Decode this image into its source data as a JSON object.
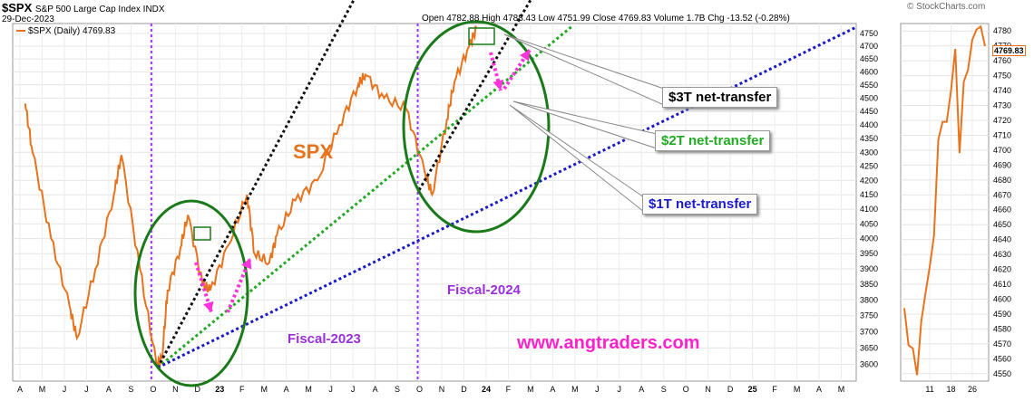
{
  "header": {
    "symbol": "$SPX",
    "name": "S&P 500 Large Cap Index INDX",
    "date": "29-Dec-2023",
    "watermark": "© StockCharts.com",
    "ohlc_text": "Open 4782.88  High 4788.43  Low 4751.99  Close 4769.83  Volume 1.7B  Chg -13.52 (-0.28%)",
    "legend": "$SPX (Daily) 4769.83",
    "last_price": "4769.83"
  },
  "annotations": {
    "spx_label": "SPX",
    "fiscal_2023": "Fiscal-2023",
    "fiscal_2024": "Fiscal-2024",
    "website": "www.angtraders.com",
    "callout_3t": "$3T net-transfer",
    "callout_2t": "$2T net-transfer",
    "callout_1t": "$1T net-transfer"
  },
  "colors": {
    "price": "#e8731c",
    "trend_3t": "#111111",
    "trend_2t": "#22aa22",
    "trend_1t": "#1a1acc",
    "ellipse": "#1a7a1a",
    "fiscal_line": "#9b30ff",
    "arrow": "#ff33dd",
    "fiscal_text": "#9b30d9",
    "website": "#ff22cc"
  },
  "chart_data": [
    {
      "type": "line",
      "series_name": "$SPX (Daily)",
      "y_scale": "log",
      "ylim": [
        3550,
        4790
      ],
      "y_ticks": [
        3600,
        3650,
        3700,
        3750,
        3800,
        3850,
        3900,
        3950,
        4000,
        4050,
        4100,
        4150,
        4200,
        4250,
        4300,
        4350,
        4400,
        4450,
        4500,
        4550,
        4600,
        4650,
        4700,
        4750
      ],
      "x_tick_labels": [
        "A",
        "M",
        "J",
        "J",
        "A",
        "S",
        "O",
        "N",
        "D",
        "23",
        "F",
        "M",
        "A",
        "M",
        "J",
        "J",
        "A",
        "S",
        "O",
        "N",
        "D",
        "24",
        "F",
        "M",
        "A",
        "M",
        "J",
        "J",
        "A",
        "S",
        "O",
        "N",
        "D",
        "25",
        "F",
        "M",
        "A",
        "M"
      ],
      "x": [
        "2022-04",
        "2022-04",
        "2022-05",
        "2022-06",
        "2022-06",
        "2022-07",
        "2022-08",
        "2022-08",
        "2022-09",
        "2022-10",
        "2022-10",
        "2022-10",
        "2022-11",
        "2022-11",
        "2022-12",
        "2022-12",
        "2023-01",
        "2023-02",
        "2023-02",
        "2023-03",
        "2023-03",
        "2023-04",
        "2023-05",
        "2023-06",
        "2023-07",
        "2023-07",
        "2023-08",
        "2023-09",
        "2023-10",
        "2023-10",
        "2023-11",
        "2023-11",
        "2023-12",
        "2023-12"
      ],
      "y": [
        4480,
        4300,
        4000,
        3780,
        3680,
        3900,
        4150,
        4290,
        3900,
        3600,
        3620,
        3830,
        3970,
        4080,
        3850,
        3830,
        3980,
        4150,
        3950,
        3920,
        4010,
        4130,
        4200,
        4400,
        4550,
        4589,
        4500,
        4460,
        4230,
        4150,
        4420,
        4560,
        4700,
        4769.83
      ],
      "grid": true,
      "fiscal_boundaries": [
        "2022-10",
        "2023-10"
      ],
      "trendlines": [
        "$1T net-transfer",
        "$2T net-transfer",
        "$3T net-transfer"
      ]
    },
    {
      "type": "line",
      "series_name": "$SPX (Daily) inset",
      "ylim": [
        4545,
        4785
      ],
      "y_ticks": [
        4550,
        4560,
        4570,
        4580,
        4590,
        4600,
        4610,
        4620,
        4630,
        4640,
        4650,
        4660,
        4670,
        4680,
        4690,
        4700,
        4710,
        4720,
        4730,
        4740,
        4750,
        4760,
        4770,
        4780
      ],
      "x_tick_labels": [
        "11",
        "18",
        "26"
      ],
      "x": [
        "Dec 1",
        "Dec 4",
        "Dec 5",
        "Dec 6",
        "Dec 7",
        "Dec 8",
        "Dec 11",
        "Dec 12",
        "Dec 13",
        "Dec 14",
        "Dec 15",
        "Dec 18",
        "Dec 19",
        "Dec 20",
        "Dec 21",
        "Dec 22",
        "Dec 26",
        "Dec 27",
        "Dec 28",
        "Dec 29"
      ],
      "y": [
        4594,
        4569,
        4567,
        4549,
        4585,
        4604,
        4622,
        4643,
        4707,
        4719,
        4719,
        4740,
        4768,
        4698,
        4746,
        4754,
        4774,
        4781,
        4783,
        4769.83
      ],
      "grid": true
    }
  ]
}
